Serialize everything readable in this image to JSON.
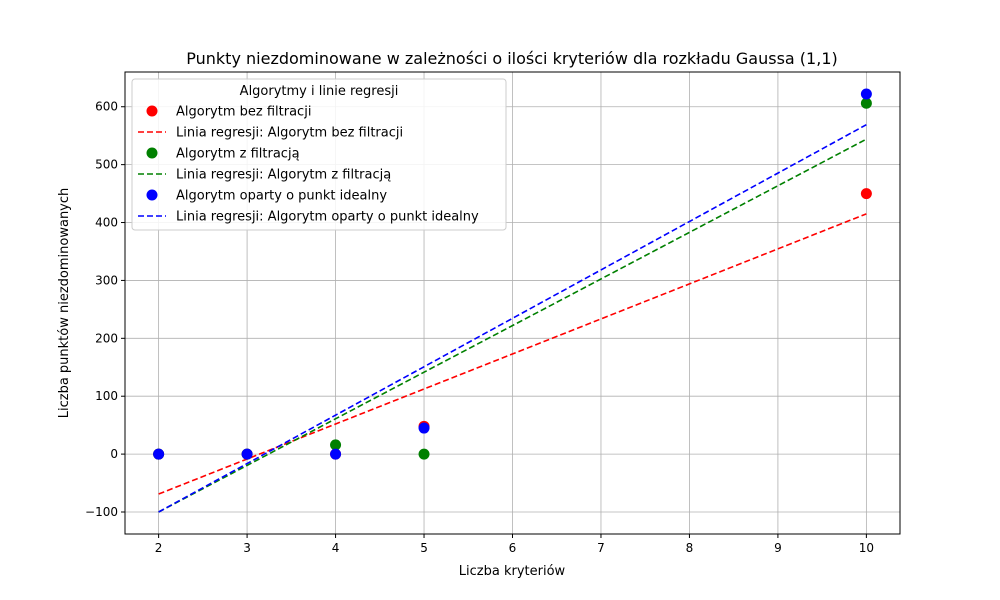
{
  "chart_data": {
    "type": "scatter",
    "title": "Punkty niezdominowane w zależności o ilości kryteriów dla rozkładu Gaussa (1,1)",
    "xlabel": "Liczba kryteriów",
    "ylabel": "Liczba punktów niezdominowanych",
    "xlim": [
      1.62,
      10.38
    ],
    "ylim": [
      -138,
      660
    ],
    "x_ticks": [
      2,
      3,
      4,
      5,
      6,
      7,
      8,
      9,
      10
    ],
    "y_ticks": [
      -100,
      0,
      100,
      200,
      300,
      400,
      500,
      600
    ],
    "grid": true,
    "legend": {
      "title": "Algorytmy i linie regresji",
      "placement": "upper-left"
    },
    "series": [
      {
        "name": "Algorytm bez filtracji",
        "kind": "scatter",
        "color": "#ff0000",
        "x": [
          2,
          3,
          4,
          5,
          10
        ],
        "y": [
          0,
          0,
          0,
          48,
          450
        ]
      },
      {
        "name": "Linia regresji: Algorytm bez filtracji",
        "kind": "line",
        "style": "dashed",
        "color": "#ff0000",
        "x": [
          2,
          10
        ],
        "y": [
          -69,
          415
        ]
      },
      {
        "name": "Algorytm z filtracją",
        "kind": "scatter",
        "color": "#008000",
        "x": [
          2,
          3,
          4,
          5,
          10
        ],
        "y": [
          0,
          0,
          16,
          0,
          606
        ]
      },
      {
        "name": "Linia regresji: Algorytm z filtracją",
        "kind": "line",
        "style": "dashed",
        "color": "#008000",
        "x": [
          2,
          10
        ],
        "y": [
          -100,
          544
        ]
      },
      {
        "name": "Algorytm oparty o punkt idealny",
        "kind": "scatter",
        "color": "#0000ff",
        "x": [
          2,
          3,
          4,
          5,
          10
        ],
        "y": [
          0,
          0,
          0,
          45,
          622
        ]
      },
      {
        "name": "Linia regresji: Algorytm oparty o punkt idealny",
        "kind": "line",
        "style": "dashed",
        "color": "#0000ff",
        "x": [
          2,
          10
        ],
        "y": [
          -100,
          569
        ]
      }
    ]
  }
}
